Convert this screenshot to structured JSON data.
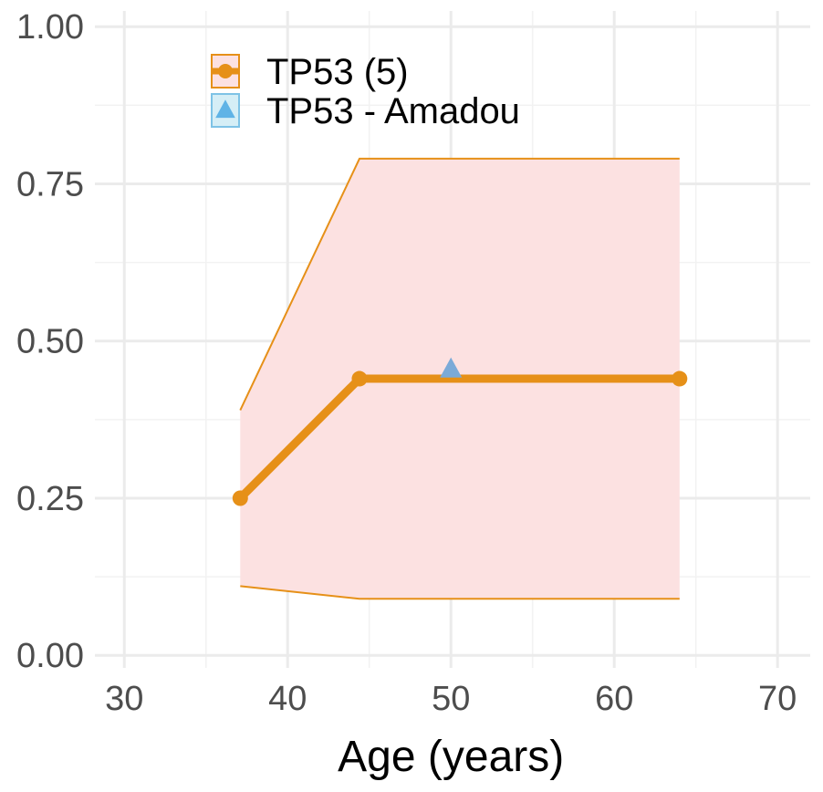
{
  "chart_data": {
    "type": "line",
    "xlabel": "Age (years)",
    "ylabel": "",
    "xlim": [
      28.2,
      72
    ],
    "ylim": [
      -0.02,
      1.025
    ],
    "x_ticks": [
      30,
      40,
      50,
      60,
      70
    ],
    "x_tick_labels": [
      "30",
      "40",
      "50",
      "60",
      "70"
    ],
    "y_ticks": [
      0,
      0.25,
      0.5,
      0.75,
      1.0
    ],
    "y_tick_labels": [
      "0.00",
      "0.25",
      "0.50",
      "0.75",
      "1.00"
    ],
    "grid": true,
    "legend_position": "top-left",
    "series": [
      {
        "name": "TP53 (5)",
        "kind": "line",
        "marker": "circle",
        "color": "#E69018",
        "x": [
          37.1,
          44.4,
          64.0
        ],
        "y": [
          0.25,
          0.44,
          0.44
        ],
        "ci_lower": [
          0.11,
          0.09,
          0.09
        ],
        "ci_upper": [
          0.39,
          0.79,
          0.79
        ],
        "ci_fill_color": "#FCE1E1"
      },
      {
        "name": "TP53 - Amadou",
        "kind": "point",
        "marker": "triangle",
        "color": "#7BAAD8",
        "x": [
          50.0
        ],
        "y": [
          0.455
        ]
      }
    ]
  }
}
